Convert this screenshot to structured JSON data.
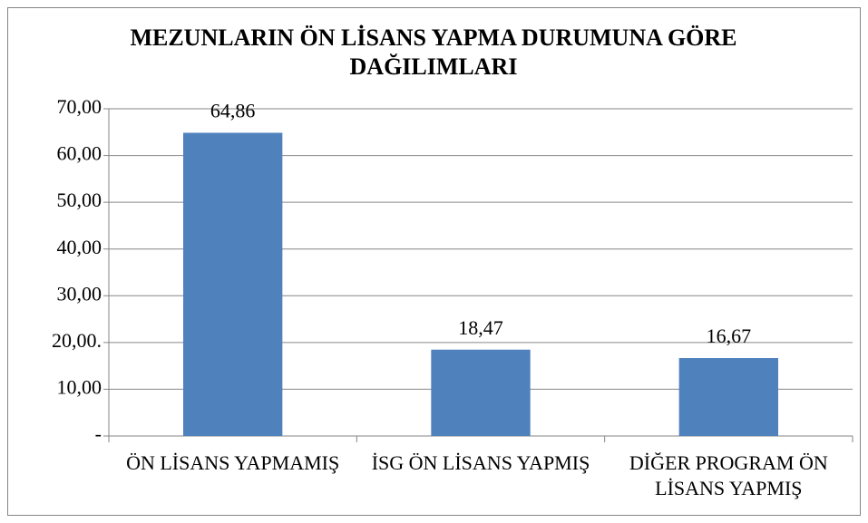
{
  "chart_data": {
    "type": "bar",
    "title": "MEZUNLARIN ÖN LİSANS YAPMA DURUMUNA GÖRE DAĞILIMLARI",
    "categories": [
      "ÖN LİSANS YAPMAMIŞ",
      "İSG ÖN LİSANS YAPMIŞ",
      "DİĞER PROGRAM ÖN LİSANS YAPMIŞ"
    ],
    "values": [
      64.86,
      18.47,
      16.67
    ],
    "value_labels": [
      "64,86",
      "18,47",
      "16,67"
    ],
    "color": "#4f81bd",
    "ylim": [
      0,
      70
    ],
    "yticks": [
      {
        "value": 0,
        "label": "-"
      },
      {
        "value": 10,
        "label": "10,00"
      },
      {
        "value": 20,
        "label": "20,00."
      },
      {
        "value": 30,
        "label": "30,00"
      },
      {
        "value": 40,
        "label": "40,00"
      },
      {
        "value": 50,
        "label": "50,00"
      },
      {
        "value": 60,
        "label": "60,00"
      },
      {
        "value": 70,
        "label": "70,00"
      }
    ],
    "grid": true
  }
}
